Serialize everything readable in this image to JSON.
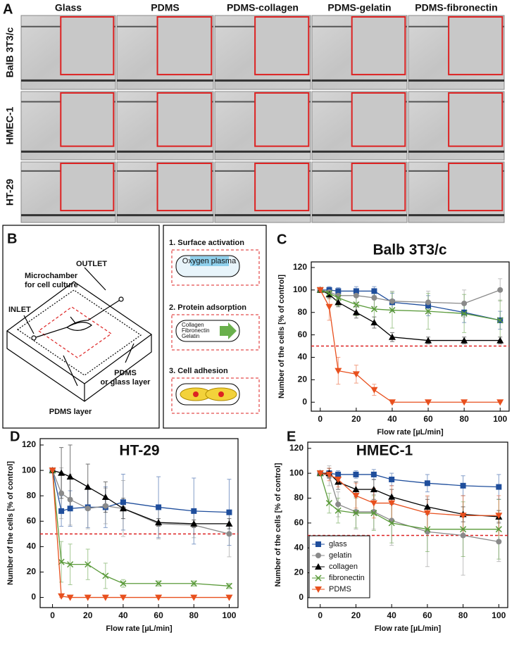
{
  "panel_a": {
    "label": "A",
    "columns": [
      "Glass",
      "PDMS",
      "PDMS-collagen",
      "PDMS-gelatin",
      "PDMS-fibronectin"
    ],
    "rows": [
      "BalB 3T3/c",
      "HMEC-1",
      "HT-29"
    ]
  },
  "panel_b": {
    "label": "B",
    "outlet": "OUTLET",
    "chamber": [
      "Microchamber",
      "for cell culture"
    ],
    "inlet": "INLET",
    "layer_top": [
      "PDMS",
      "or glass layer"
    ],
    "layer_bottom": "PDMS layer",
    "steps": [
      {
        "title": "1. Surface activation",
        "items": [
          "Oxygen plasma"
        ]
      },
      {
        "title": "2. Protein adsorption",
        "items": [
          "Collagen",
          "Fibronectin",
          "Gelatin"
        ]
      },
      {
        "title": "3. Cell adhesion",
        "items": []
      }
    ]
  },
  "chart_data": [
    {
      "type": "line",
      "label": "C",
      "title": "Balb 3T3/c",
      "x_label": "Flow rate [µL/min]",
      "y_label": "Number of the cells [% of control]",
      "x": [
        0,
        5,
        10,
        20,
        30,
        40,
        60,
        80,
        100
      ],
      "xlim": [
        -5,
        105
      ],
      "ylim": [
        -8,
        125
      ],
      "xticks": [
        0,
        20,
        40,
        60,
        80,
        100
      ],
      "yticks": [
        0,
        20,
        40,
        60,
        80,
        100,
        120
      ],
      "reference_line": 50,
      "series": [
        {
          "color": "#1f4e9c",
          "marker": "square",
          "values": [
            100,
            100,
            99,
            99,
            99,
            89,
            86,
            80,
            73
          ],
          "errors": [
            0,
            3,
            3,
            4,
            4,
            8,
            9,
            9,
            8
          ]
        },
        {
          "color": "#8a8a8a",
          "marker": "circle",
          "values": [
            100,
            98,
            95,
            95,
            93,
            90,
            89,
            88,
            100
          ],
          "errors": [
            0,
            4,
            5,
            6,
            8,
            9,
            10,
            12,
            10
          ]
        },
        {
          "color": "#000000",
          "marker": "triangle",
          "values": [
            100,
            96,
            89,
            80,
            71,
            58,
            55,
            55,
            55
          ],
          "errors": [
            0,
            3,
            4,
            5,
            5,
            4,
            3,
            3,
            3
          ]
        },
        {
          "color": "#5a9a3a",
          "marker": "x",
          "values": [
            100,
            97,
            93,
            87,
            83,
            82,
            81,
            79,
            73
          ],
          "errors": [
            0,
            5,
            7,
            10,
            14,
            16,
            16,
            17,
            18
          ]
        },
        {
          "color": "#e8501e",
          "marker": "triangle-down",
          "values": [
            100,
            85,
            28,
            25,
            11,
            0,
            0,
            0,
            0
          ],
          "errors": [
            0,
            12,
            12,
            8,
            5,
            1,
            0,
            0,
            0
          ]
        }
      ]
    },
    {
      "type": "line",
      "label": "D",
      "title": "HT-29",
      "x_label": "Flow rate [µL/min]",
      "y_label": "Number of the cells [% of control]",
      "x": [
        0,
        5,
        10,
        20,
        30,
        40,
        60,
        80,
        100
      ],
      "xlim": [
        -7,
        105
      ],
      "ylim": [
        -8,
        125
      ],
      "xticks": [
        0,
        20,
        40,
        60,
        80,
        100
      ],
      "yticks": [
        0,
        20,
        40,
        60,
        80,
        100,
        120
      ],
      "reference_line": 50,
      "series": [
        {
          "color": "#1f4e9c",
          "marker": "square",
          "values": [
            100,
            68,
            70,
            71,
            71,
            75,
            71,
            68,
            67
          ],
          "errors": [
            0,
            12,
            14,
            16,
            16,
            22,
            24,
            26,
            26
          ]
        },
        {
          "color": "#8a8a8a",
          "marker": "circle",
          "values": [
            100,
            82,
            77,
            70,
            72,
            70,
            58,
            57,
            50
          ],
          "errors": [
            0,
            20,
            20,
            16,
            14,
            22,
            12,
            10,
            18
          ]
        },
        {
          "color": "#000000",
          "marker": "triangle",
          "values": [
            100,
            98,
            95,
            87,
            79,
            70,
            59,
            58,
            58
          ],
          "errors": [
            0,
            20,
            25,
            18,
            12,
            8,
            3,
            3,
            4
          ]
        },
        {
          "color": "#5a9a3a",
          "marker": "x",
          "values": [
            100,
            28,
            26,
            26,
            17,
            11,
            11,
            11,
            9
          ],
          "errors": [
            0,
            16,
            16,
            12,
            10,
            3,
            2,
            2,
            2
          ]
        },
        {
          "color": "#e8501e",
          "marker": "triangle-down",
          "values": [
            100,
            1,
            0,
            0,
            0,
            0,
            0,
            0,
            0
          ],
          "errors": [
            0,
            1,
            0,
            0,
            0,
            0,
            0,
            0,
            0
          ]
        }
      ]
    },
    {
      "type": "line",
      "label": "E",
      "title": "HMEC-1",
      "x_label": "Flow rate [µL/min]",
      "y_label": "Number of the cells [% of control]",
      "x": [
        0,
        5,
        10,
        20,
        30,
        40,
        60,
        80,
        100
      ],
      "xlim": [
        -7,
        105
      ],
      "ylim": [
        -8,
        125
      ],
      "xticks": [
        0,
        20,
        40,
        60,
        80,
        100
      ],
      "yticks": [
        0,
        20,
        40,
        60,
        80,
        100,
        120
      ],
      "reference_line": 50,
      "legend": "lower left",
      "series": [
        {
          "name": "glass",
          "color": "#1f4e9c",
          "marker": "square",
          "values": [
            100,
            100,
            99,
            99,
            99,
            95,
            92,
            90,
            89
          ],
          "errors": [
            0,
            2,
            3,
            3,
            4,
            5,
            7,
            8,
            10
          ]
        },
        {
          "name": "gelatin",
          "color": "#8a8a8a",
          "marker": "circle",
          "values": [
            100,
            98,
            75,
            69,
            69,
            62,
            53,
            50,
            45
          ],
          "errors": [
            0,
            8,
            10,
            14,
            14,
            20,
            28,
            32,
            16
          ]
        },
        {
          "name": "collagen",
          "color": "#000000",
          "marker": "triangle",
          "values": [
            100,
            100,
            93,
            87,
            87,
            81,
            73,
            67,
            65
          ],
          "errors": [
            0,
            4,
            6,
            6,
            8,
            6,
            6,
            6,
            5
          ]
        },
        {
          "name": "fibronectin",
          "color": "#5a9a3a",
          "marker": "x",
          "values": [
            100,
            76,
            70,
            68,
            68,
            60,
            55,
            55,
            55
          ],
          "errors": [
            0,
            8,
            10,
            12,
            14,
            16,
            18,
            22,
            24
          ]
        },
        {
          "name": "PDMS",
          "color": "#e8501e",
          "marker": "triangle-down",
          "values": [
            100,
            99,
            95,
            82,
            76,
            76,
            68,
            66,
            66
          ],
          "errors": [
            0,
            5,
            6,
            10,
            12,
            14,
            14,
            16,
            16
          ]
        }
      ]
    }
  ]
}
